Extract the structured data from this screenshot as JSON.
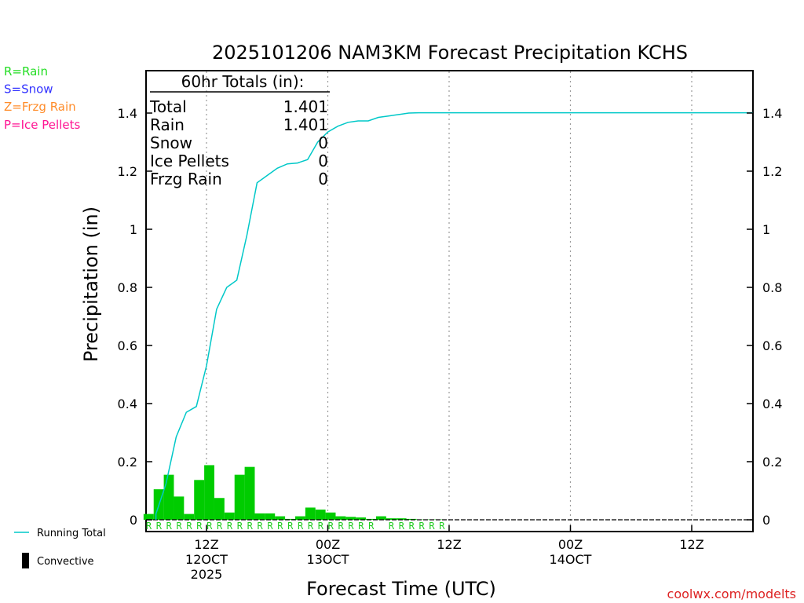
{
  "chart_data": {
    "type": "bar",
    "title": "2025101206 NAM3KM Forecast Precipitation KCHS",
    "xlabel": "Forecast Time (UTC)",
    "ylabel": "Precipitation (in)",
    "ylim": [
      0,
      1.55
    ],
    "x_unit": "forecast hour",
    "xlim": [
      -1,
      60
    ],
    "yticks": [
      0,
      0.2,
      0.4,
      0.6,
      0.8,
      1,
      1.2,
      1.4
    ],
    "ytick_labels": [
      "0",
      "0.2",
      "0.4",
      "0.6",
      "0.8",
      "1",
      "1.2",
      "1.4"
    ],
    "xticks": [
      {
        "hour": 6,
        "lines": [
          "12Z",
          "12OCT",
          "2025"
        ]
      },
      {
        "hour": 18,
        "lines": [
          "00Z",
          "13OCT"
        ]
      },
      {
        "hour": 30,
        "lines": [
          "12Z"
        ]
      },
      {
        "hour": 42,
        "lines": [
          "00Z",
          "14OCT"
        ]
      },
      {
        "hour": 54,
        "lines": [
          "12Z"
        ]
      }
    ],
    "legend_left": [
      {
        "label": "R=Rain",
        "color": "#22dd22"
      },
      {
        "label": "S=Snow",
        "color": "#3333ff"
      },
      {
        "label": "Z=Frzg Rain",
        "color": "#ff8c2a"
      },
      {
        "label": "P=Ice Pellets",
        "color": "#ff1493"
      }
    ],
    "legend_bottom": [
      {
        "label": "Running Total",
        "symbol": "line",
        "color": "#00c8c8"
      },
      {
        "label": "Convective",
        "symbol": "bar",
        "color": "#000000"
      }
    ],
    "totals": {
      "header": "60hr Totals (in):",
      "rows": [
        {
          "label": "Total",
          "value": "1.401"
        },
        {
          "label": "Rain",
          "value": "1.401"
        },
        {
          "label": "Snow",
          "value": "0"
        },
        {
          "label": "Ice Pellets",
          "value": "0"
        },
        {
          "label": "Frzg Rain",
          "value": "0"
        }
      ]
    },
    "series": [
      {
        "name": "Hourly Precipitation",
        "kind": "bar",
        "color": "#00cc00",
        "hours": [
          1,
          2,
          3,
          4,
          5,
          6,
          7,
          8,
          9,
          10,
          11,
          12,
          13,
          14,
          15,
          16,
          17,
          18,
          19,
          20,
          21,
          22,
          23,
          24,
          25,
          26,
          27,
          28,
          29,
          30
        ],
        "values": [
          0.02,
          0.105,
          0.155,
          0.08,
          0.02,
          0.137,
          0.188,
          0.075,
          0.025,
          0.155,
          0.182,
          0.022,
          0.022,
          0.012,
          0.003,
          0.012,
          0.042,
          0.035,
          0.025,
          0.012,
          0.01,
          0.008,
          0.003,
          0.012,
          0.005,
          0.005,
          0.003,
          0.001,
          0.001,
          0.001
        ]
      },
      {
        "name": "Running Total",
        "kind": "line",
        "color": "#00c8c8",
        "hours": [
          1,
          2,
          3,
          4,
          5,
          6,
          7,
          8,
          9,
          10,
          11,
          12,
          13,
          14,
          15,
          16,
          17,
          18,
          19,
          20,
          21,
          22,
          23,
          24,
          25,
          26,
          27,
          28,
          29,
          30,
          60
        ],
        "values": [
          0.02,
          0.125,
          0.285,
          0.37,
          0.39,
          0.53,
          0.725,
          0.8,
          0.825,
          0.98,
          1.16,
          1.185,
          1.21,
          1.225,
          1.228,
          1.24,
          1.3,
          1.335,
          1.355,
          1.368,
          1.373,
          1.373,
          1.385,
          1.39,
          1.395,
          1.4,
          1.401,
          1.401,
          1.401,
          1.401,
          1.401
        ]
      }
    ],
    "ptype_markers": {
      "label": "R",
      "color": "#22cc22",
      "hours": [
        1,
        2,
        3,
        4,
        5,
        6,
        7,
        8,
        9,
        10,
        11,
        12,
        13,
        14,
        15,
        16,
        17,
        18,
        19,
        20,
        21,
        22,
        23,
        25,
        26,
        27,
        28,
        29,
        30
      ]
    },
    "watermark": "coolwx.com/modelts"
  },
  "colors": {
    "grid": "#9a9a9a",
    "bar": "#00cc00",
    "line": "#00c8c8",
    "watermark": "#dd2222"
  }
}
